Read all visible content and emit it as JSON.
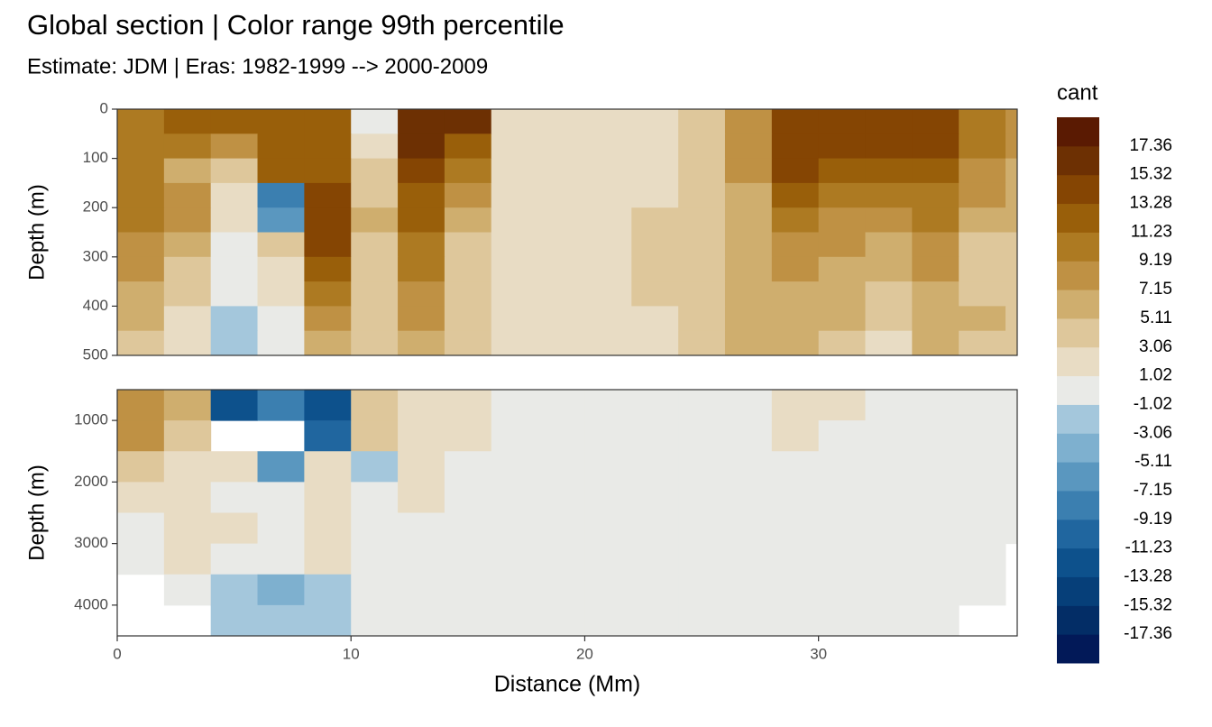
{
  "chart_data": {
    "type": "contour",
    "title": "Global section | Color range 99th percentile",
    "subtitle": "Estimate: JDM  | Eras: 1982-1999 --> 2000-2009",
    "xlabel": "Distance (Mm)",
    "xlim": [
      0,
      38.5
    ],
    "xticks": [
      0,
      10,
      20,
      30
    ],
    "x": [
      0,
      2,
      4,
      6,
      8,
      10,
      12,
      14,
      16,
      18,
      20,
      22,
      24,
      26,
      28,
      30,
      32,
      34,
      36,
      38
    ],
    "legend": {
      "title": "cant",
      "breaks": [
        -17.36,
        -15.32,
        -13.28,
        -11.23,
        -9.19,
        -7.15,
        -5.11,
        -3.06,
        -1.02,
        1.02,
        3.06,
        5.11,
        7.15,
        9.19,
        11.23,
        13.28,
        15.32,
        17.36
      ],
      "colors": [
        "#021958",
        "#032d66",
        "#063f79",
        "#0d518c",
        "#20669f",
        "#3b7fb0",
        "#5a97bf",
        "#7eb0cf",
        "#a4c7dc",
        "#e9eae7",
        "#e8dcc4",
        "#dec79b",
        "#cfae6e",
        "#bf9144",
        "#ad7a22",
        "#995f0a",
        "#854503",
        "#6d3003",
        "#5a1a02"
      ]
    },
    "panels": [
      {
        "ylabel": "Depth (m)",
        "ylim": [
          0,
          500
        ],
        "yticks": [
          0,
          100,
          200,
          300,
          400,
          500
        ],
        "y": [
          0,
          50,
          100,
          150,
          200,
          250,
          300,
          350,
          400,
          450
        ],
        "values": [
          [
            11,
            13,
            13,
            13,
            13,
            0,
            17,
            17,
            3,
            3,
            3,
            3,
            5,
            9,
            15,
            15,
            15,
            15,
            11,
            9
          ],
          [
            11,
            11,
            9,
            13,
            13,
            3,
            17,
            13,
            3,
            3,
            3,
            3,
            5,
            9,
            15,
            15,
            15,
            15,
            11,
            9
          ],
          [
            11,
            7,
            5,
            13,
            13,
            5,
            15,
            11,
            3,
            3,
            3,
            3,
            5,
            9,
            15,
            13,
            13,
            13,
            9,
            7
          ],
          [
            11,
            9,
            3,
            -9,
            15,
            5,
            13,
            9,
            3,
            3,
            3,
            3,
            5,
            7,
            13,
            11,
            11,
            11,
            9,
            7
          ],
          [
            11,
            9,
            3,
            -7,
            15,
            7,
            13,
            7,
            3,
            3,
            3,
            5,
            5,
            7,
            11,
            9,
            9,
            11,
            7,
            7
          ],
          [
            9,
            7,
            1,
            5,
            15,
            5,
            11,
            5,
            3,
            3,
            3,
            5,
            5,
            7,
            9,
            9,
            7,
            9,
            5,
            5
          ],
          [
            9,
            5,
            0,
            3,
            13,
            5,
            11,
            5,
            3,
            3,
            3,
            5,
            5,
            7,
            9,
            7,
            7,
            9,
            5,
            5
          ],
          [
            7,
            5,
            -1,
            3,
            11,
            5,
            9,
            5,
            3,
            3,
            3,
            5,
            5,
            7,
            7,
            7,
            5,
            7,
            5,
            5
          ],
          [
            7,
            3,
            -3,
            0,
            9,
            5,
            9,
            5,
            3,
            3,
            3,
            3,
            5,
            7,
            7,
            7,
            5,
            7,
            7,
            5
          ],
          [
            5,
            3,
            -3,
            1,
            7,
            5,
            7,
            5,
            3,
            3,
            3,
            3,
            5,
            7,
            7,
            5,
            3,
            7,
            5,
            5
          ]
        ]
      },
      {
        "ylabel": "Depth (m)",
        "ylim": [
          500,
          4500
        ],
        "yticks": [
          1000,
          2000,
          3000,
          4000
        ],
        "y": [
          500,
          1000,
          1500,
          2000,
          2500,
          3000,
          3500,
          4000
        ],
        "values": [
          [
            9,
            7,
            -13,
            -9,
            -13,
            5,
            3,
            3,
            1,
            1,
            1,
            1,
            1,
            1,
            3,
            3,
            -1,
            -1,
            -1,
            1
          ],
          [
            9,
            5,
            null,
            null,
            -11,
            5,
            3,
            3,
            1,
            1,
            1,
            1,
            1,
            1,
            3,
            1,
            0,
            -1,
            -1,
            0
          ],
          [
            5,
            3,
            3,
            -7,
            3,
            -3,
            3,
            1,
            0,
            0,
            1,
            1,
            1,
            1,
            1,
            1,
            0,
            0,
            0,
            0
          ],
          [
            3,
            3,
            1,
            -1,
            3,
            -1,
            3,
            1,
            0,
            0,
            0,
            1,
            1,
            0,
            0,
            0,
            0,
            0,
            0,
            0
          ],
          [
            1,
            3,
            3,
            1,
            3,
            1,
            1,
            0,
            0,
            0,
            0,
            1,
            1,
            0,
            0,
            0,
            0,
            0,
            0,
            0
          ],
          [
            1,
            3,
            1,
            0,
            3,
            0,
            1,
            0,
            0,
            0,
            0,
            0,
            1,
            0,
            0,
            0,
            0,
            0,
            0,
            null
          ],
          [
            null,
            1,
            -3,
            -5,
            -3,
            0,
            1,
            0,
            0,
            0,
            0,
            0,
            1,
            1,
            0,
            0,
            0,
            0,
            0,
            null
          ],
          [
            null,
            null,
            -3,
            -3,
            -3,
            0,
            0,
            0,
            0,
            0,
            0,
            0,
            1,
            1,
            0,
            0,
            0,
            0,
            null,
            null
          ]
        ]
      }
    ]
  }
}
